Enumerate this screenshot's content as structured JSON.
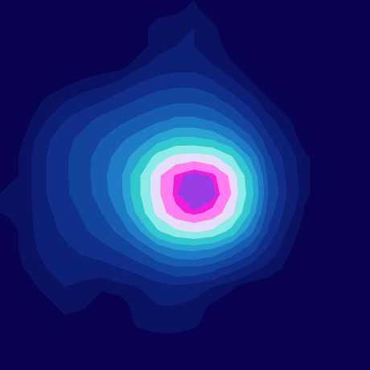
{
  "chart_data": {
    "type": "contour",
    "z": [
      [
        0,
        0,
        0,
        0,
        0,
        0,
        0,
        0,
        0,
        1,
        2,
        0,
        0,
        0,
        0,
        0,
        0,
        0,
        0,
        0
      ],
      [
        0,
        0,
        0,
        0,
        0,
        0,
        0,
        0,
        3,
        3,
        4,
        2,
        0,
        0,
        0,
        0,
        0,
        0,
        0,
        0
      ],
      [
        0,
        0,
        0,
        0,
        0,
        0,
        0,
        0,
        3,
        4,
        4,
        3,
        0,
        0,
        0,
        0,
        0,
        0,
        0,
        0
      ],
      [
        0,
        0,
        0,
        0,
        0,
        0,
        0,
        3,
        5,
        6,
        6,
        4,
        2,
        0,
        0,
        0,
        0,
        0,
        0,
        0
      ],
      [
        0,
        0,
        0,
        1,
        2,
        3,
        5,
        8,
        10,
        11,
        11,
        9,
        5,
        2,
        0,
        0,
        0,
        0,
        0,
        0
      ],
      [
        0,
        0,
        2,
        4,
        6,
        8,
        11,
        14,
        17,
        19,
        19,
        16,
        11,
        6,
        2,
        0,
        0,
        0,
        0,
        0
      ],
      [
        0,
        1,
        4,
        8,
        11,
        15,
        18,
        22,
        26,
        30,
        30,
        27,
        20,
        12,
        5,
        2,
        0,
        0,
        0,
        0
      ],
      [
        0,
        2,
        7,
        11,
        15,
        20,
        26,
        32,
        42,
        50,
        50,
        46,
        36,
        22,
        9,
        4,
        0,
        0,
        0,
        0
      ],
      [
        0,
        3,
        8,
        12,
        17,
        24,
        32,
        45,
        66,
        76,
        78,
        75,
        62,
        38,
        14,
        6,
        2,
        0,
        0,
        0
      ],
      [
        0,
        3,
        8,
        12,
        17,
        25,
        36,
        58,
        80,
        91,
        96,
        92,
        80,
        52,
        18,
        7,
        2,
        0,
        0,
        0
      ],
      [
        3,
        3,
        8,
        12,
        16,
        24,
        35,
        58,
        80,
        92,
        100,
        95,
        82,
        55,
        20,
        8,
        2,
        0,
        0,
        0
      ],
      [
        2,
        3,
        7,
        10,
        14,
        20,
        30,
        52,
        76,
        88,
        92,
        88,
        76,
        48,
        16,
        6,
        1,
        0,
        0,
        0
      ],
      [
        0,
        3,
        6,
        9,
        12,
        16,
        22,
        36,
        58,
        70,
        74,
        70,
        56,
        32,
        12,
        4,
        0,
        0,
        0,
        0
      ],
      [
        0,
        3,
        5,
        7,
        9,
        11,
        14,
        20,
        30,
        38,
        40,
        36,
        26,
        16,
        7,
        2,
        0,
        0,
        0,
        0
      ],
      [
        0,
        2,
        4,
        5,
        6,
        6,
        8,
        10,
        14,
        18,
        18,
        15,
        10,
        6,
        3,
        1,
        0,
        0,
        0,
        0
      ],
      [
        0,
        0,
        3,
        4,
        3,
        2,
        3,
        4,
        6,
        7,
        6,
        4,
        2,
        0,
        0,
        0,
        0,
        0,
        0,
        0
      ],
      [
        0,
        0,
        0,
        3,
        2,
        0,
        0,
        3,
        4,
        4,
        3,
        1,
        0,
        0,
        0,
        0,
        0,
        0,
        0,
        0
      ],
      [
        0,
        0,
        0,
        0,
        0,
        0,
        0,
        2,
        3,
        3,
        2,
        0,
        0,
        0,
        0,
        0,
        0,
        0,
        0,
        0
      ],
      [
        0,
        0,
        0,
        0,
        0,
        0,
        0,
        0,
        0,
        0,
        0,
        0,
        0,
        0,
        0,
        0,
        0,
        0,
        0,
        0
      ],
      [
        0,
        0,
        0,
        0,
        0,
        0,
        0,
        0,
        0,
        0,
        0,
        0,
        0,
        0,
        0,
        0,
        0,
        0,
        0,
        0
      ]
    ],
    "thresholds": [
      1.5,
      4,
      8,
      13,
      20,
      28,
      38,
      48,
      60,
      72,
      82,
      90,
      93
    ],
    "colors": [
      "#0c1262",
      "#0d1f74",
      "#0f2f88",
      "#13449c",
      "#185cb2",
      "#1f7ac4",
      "#28a2d0",
      "#33c8d0",
      "#8aeae6",
      "#e6ddfa",
      "#ff7ef0",
      "#ee20dc",
      "#9a3ce6"
    ],
    "tick_labels": false
  }
}
